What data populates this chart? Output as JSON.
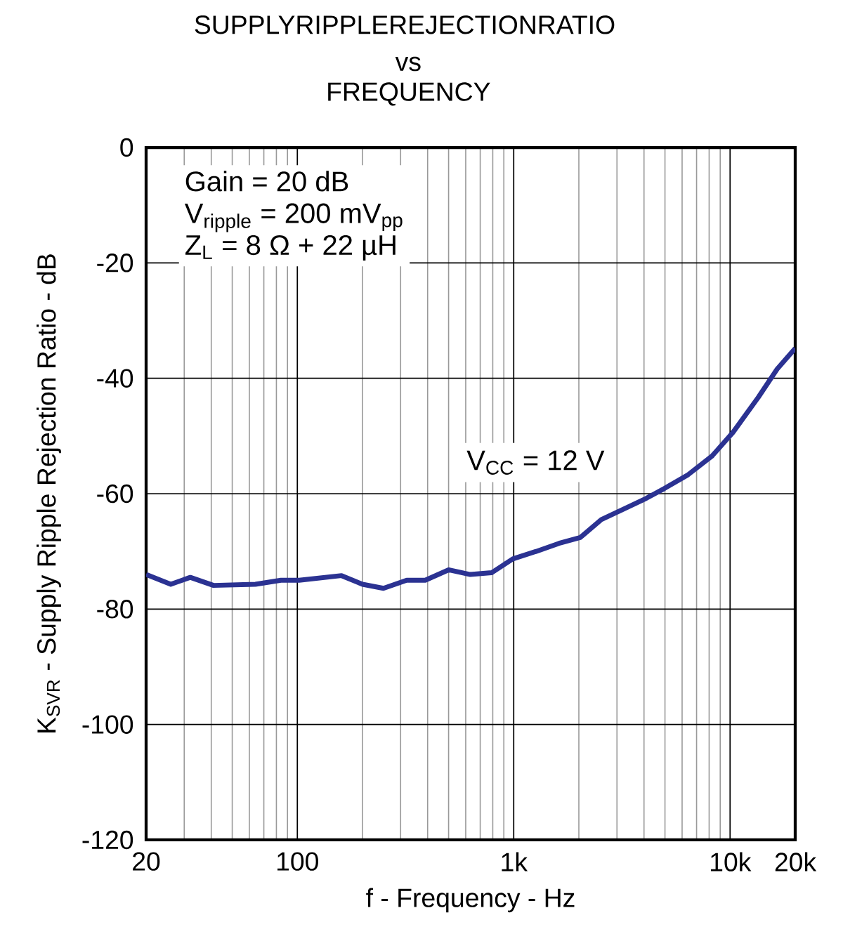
{
  "chart_data": {
    "type": "line",
    "title": "SUPPLYRIPPLEREJECTIONRATIO",
    "subtitle": "vs FREQUENCY",
    "xlabel": "f - Frequency - Hz",
    "ylabel": "K$_{SVR}$ - Supply Ripple Rejection Ratio - dB",
    "annotations": [
      "Gain = 20 dB",
      "V$_{ripple}$ = 200 mV$_{pp}$",
      "Z$_{L}$ = 8 Ω + 22 µH",
      "V$_{CC}$ = 12 V"
    ],
    "log": "x",
    "grid": true,
    "marker": "none",
    "line_style": "solid",
    "xlim": [
      20,
      20000
    ],
    "ylim": [
      -120,
      0
    ],
    "xticks": [
      20,
      100,
      {
        "value": 1000,
        "label": "1k"
      },
      {
        "value": 10000,
        "label": "10k"
      },
      {
        "value": 20000,
        "label": "20k"
      }
    ],
    "yticks": [
      -120,
      -100,
      -80,
      -60,
      -40,
      -20,
      0
    ],
    "series": [
      {
        "color": "#2b3292",
        "x": [
          20,
          26,
          32,
          41,
          64,
          84,
          102,
          160,
          200,
          250,
          320,
          390,
          500,
          630,
          790,
          990,
          1270,
          1620,
          2030,
          2540,
          3160,
          4100,
          4970,
          6400,
          8240,
          10300,
          13500,
          16500,
          20000
        ],
        "values": [
          -74,
          -75.7,
          -74.5,
          -75.9,
          -75.7,
          -75,
          -75,
          -74.2,
          -75.7,
          -76.4,
          -75,
          -75,
          -73.2,
          -74,
          -73.7,
          -71.3,
          -70,
          -68.6,
          -67.6,
          -64.5,
          -62.8,
          -60.8,
          -59.1,
          -56.7,
          -53.5,
          -49.4,
          -43.3,
          -38.4,
          -34.8
        ]
      }
    ]
  }
}
